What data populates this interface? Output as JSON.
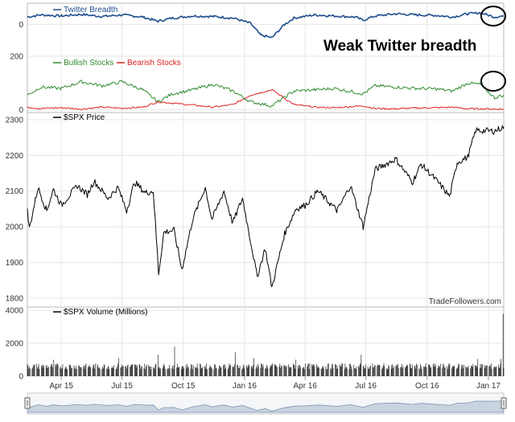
{
  "chart_data": {
    "type": "line",
    "source": "TradeFollowers.com",
    "annotation": "Weak Twitter breadth",
    "x_ticks": [
      "Apr 15",
      "Jul 15",
      "Oct 15",
      "Jan 16",
      "Apr 16",
      "Jul 16",
      "Oct 16",
      "Jan 17"
    ],
    "x_tick_dates": [
      "2015-04-01",
      "2015-07-01",
      "2015-10-01",
      "2016-01-01",
      "2016-04-01",
      "2016-07-01",
      "2016-10-01",
      "2017-01-01"
    ],
    "date_range": [
      "2015-02-09",
      "2017-01-24"
    ],
    "panels": [
      {
        "id": "breadth",
        "yticks": [
          0
        ],
        "ylim": [
          -60,
          40
        ],
        "series": [
          {
            "name": "Twitter Breadth",
            "color": "#1f4e8c",
            "points": [
              [
                "2015-02-09",
                14
              ],
              [
                "2015-03-01",
                18
              ],
              [
                "2015-04-01",
                16
              ],
              [
                "2015-05-01",
                19
              ],
              [
                "2015-06-01",
                15
              ],
              [
                "2015-07-01",
                18
              ],
              [
                "2015-08-01",
                14
              ],
              [
                "2015-08-24",
                6
              ],
              [
                "2015-09-15",
                12
              ],
              [
                "2015-10-15",
                16
              ],
              [
                "2015-11-15",
                15
              ],
              [
                "2015-12-15",
                12
              ],
              [
                "2016-01-10",
                2
              ],
              [
                "2016-01-25",
                -20
              ],
              [
                "2016-02-11",
                -25
              ],
              [
                "2016-03-01",
                0
              ],
              [
                "2016-03-15",
                12
              ],
              [
                "2016-04-15",
                18
              ],
              [
                "2016-05-15",
                16
              ],
              [
                "2016-06-15",
                14
              ],
              [
                "2016-06-27",
                8
              ],
              [
                "2016-07-15",
                16
              ],
              [
                "2016-08-15",
                20
              ],
              [
                "2016-09-15",
                18
              ],
              [
                "2016-10-15",
                17
              ],
              [
                "2016-11-08",
                14
              ],
              [
                "2016-12-01",
                20
              ],
              [
                "2016-12-20",
                22
              ],
              [
                "2017-01-10",
                14
              ],
              [
                "2017-01-24",
                16
              ]
            ]
          }
        ]
      },
      {
        "id": "bull-bear",
        "yticks": [
          0,
          200
        ],
        "ylim": [
          -10,
          200
        ],
        "series": [
          {
            "name": "Bullish Stocks",
            "color": "#2e8b2e",
            "points": [
              [
                "2015-02-09",
                55
              ],
              [
                "2015-03-01",
                85
              ],
              [
                "2015-04-01",
                80
              ],
              [
                "2015-05-01",
                105
              ],
              [
                "2015-06-01",
                90
              ],
              [
                "2015-07-01",
                105
              ],
              [
                "2015-08-01",
                75
              ],
              [
                "2015-08-24",
                30
              ],
              [
                "2015-09-15",
                60
              ],
              [
                "2015-10-15",
                75
              ],
              [
                "2015-11-15",
                95
              ],
              [
                "2015-12-15",
                70
              ],
              [
                "2016-01-10",
                30
              ],
              [
                "2016-02-11",
                15
              ],
              [
                "2016-03-15",
                70
              ],
              [
                "2016-04-15",
                75
              ],
              [
                "2016-05-15",
                80
              ],
              [
                "2016-06-27",
                60
              ],
              [
                "2016-07-15",
                90
              ],
              [
                "2016-08-15",
                85
              ],
              [
                "2016-09-15",
                80
              ],
              [
                "2016-10-15",
                78
              ],
              [
                "2016-11-08",
                70
              ],
              [
                "2016-12-01",
                100
              ],
              [
                "2016-12-20",
                95
              ],
              [
                "2017-01-10",
                45
              ],
              [
                "2017-01-24",
                55
              ]
            ]
          },
          {
            "name": "Bearish Stocks",
            "color": "#e02020",
            "points": [
              [
                "2015-02-09",
                10
              ],
              [
                "2015-03-01",
                5
              ],
              [
                "2015-04-01",
                8
              ],
              [
                "2015-05-01",
                3
              ],
              [
                "2015-06-01",
                10
              ],
              [
                "2015-07-01",
                6
              ],
              [
                "2015-08-01",
                10
              ],
              [
                "2015-08-24",
                30
              ],
              [
                "2015-09-15",
                25
              ],
              [
                "2015-10-15",
                18
              ],
              [
                "2015-11-15",
                10
              ],
              [
                "2015-12-15",
                20
              ],
              [
                "2016-01-10",
                55
              ],
              [
                "2016-02-11",
                75
              ],
              [
                "2016-03-15",
                20
              ],
              [
                "2016-04-15",
                10
              ],
              [
                "2016-05-15",
                8
              ],
              [
                "2016-06-27",
                15
              ],
              [
                "2016-07-15",
                5
              ],
              [
                "2016-08-15",
                4
              ],
              [
                "2016-09-15",
                7
              ],
              [
                "2016-10-15",
                8
              ],
              [
                "2016-11-08",
                10
              ],
              [
                "2016-12-01",
                4
              ],
              [
                "2016-12-20",
                4
              ],
              [
                "2017-01-10",
                3
              ],
              [
                "2017-01-24",
                3
              ]
            ]
          }
        ]
      },
      {
        "id": "price",
        "yticks": [
          1800,
          1900,
          2000,
          2100,
          2200,
          2300
        ],
        "ylim": [
          1775,
          2320
        ],
        "series": [
          {
            "name": "$SPX Price",
            "color": "#000000",
            "points": [
              [
                "2015-02-09",
                2045
              ],
              [
                "2015-02-12",
                1995
              ],
              [
                "2015-02-25",
                2110
              ],
              [
                "2015-03-10",
                2045
              ],
              [
                "2015-03-20",
                2105
              ],
              [
                "2015-04-01",
                2060
              ],
              [
                "2015-04-25",
                2115
              ],
              [
                "2015-05-10",
                2090
              ],
              [
                "2015-05-20",
                2128
              ],
              [
                "2015-06-10",
                2080
              ],
              [
                "2015-06-25",
                2110
              ],
              [
                "2015-07-08",
                2045
              ],
              [
                "2015-07-20",
                2125
              ],
              [
                "2015-08-05",
                2095
              ],
              [
                "2015-08-17",
                2100
              ],
              [
                "2015-08-25",
                1870
              ],
              [
                "2015-09-02",
                1985
              ],
              [
                "2015-09-17",
                1990
              ],
              [
                "2015-09-29",
                1880
              ],
              [
                "2015-10-15",
                2020
              ],
              [
                "2015-11-03",
                2110
              ],
              [
                "2015-11-13",
                2020
              ],
              [
                "2015-12-01",
                2100
              ],
              [
                "2015-12-14",
                2010
              ],
              [
                "2015-12-29",
                2080
              ],
              [
                "2016-01-20",
                1860
              ],
              [
                "2016-02-01",
                1940
              ],
              [
                "2016-02-11",
                1830
              ],
              [
                "2016-03-01",
                1980
              ],
              [
                "2016-03-18",
                2050
              ],
              [
                "2016-04-01",
                2060
              ],
              [
                "2016-04-20",
                2100
              ],
              [
                "2016-05-19",
                2045
              ],
              [
                "2016-06-08",
                2115
              ],
              [
                "2016-06-27",
                2000
              ],
              [
                "2016-07-15",
                2160
              ],
              [
                "2016-08-15",
                2190
              ],
              [
                "2016-09-09",
                2125
              ],
              [
                "2016-09-22",
                2175
              ],
              [
                "2016-10-15",
                2130
              ],
              [
                "2016-11-04",
                2085
              ],
              [
                "2016-11-15",
                2180
              ],
              [
                "2016-12-01",
                2195
              ],
              [
                "2016-12-13",
                2270
              ],
              [
                "2017-01-10",
                2268
              ],
              [
                "2017-01-24",
                2280
              ]
            ]
          }
        ]
      },
      {
        "id": "volume",
        "yticks": [
          0,
          2000,
          4000
        ],
        "ylim": [
          0,
          4200
        ],
        "series": [
          {
            "name": "$SPX Volume (Millions)",
            "color": "#000000",
            "base_volume": 600,
            "spikes": [
              [
                "2015-03-20",
                1000
              ],
              [
                "2015-06-26",
                1100
              ],
              [
                "2015-08-24",
                1300
              ],
              [
                "2015-09-18",
                1800
              ],
              [
                "2015-12-18",
                1450
              ],
              [
                "2016-01-15",
                1100
              ],
              [
                "2016-03-18",
                1000
              ],
              [
                "2016-06-24",
                1300
              ],
              [
                "2016-12-16",
                1050
              ],
              [
                "2017-01-20",
                1050
              ],
              [
                "2017-01-23",
                3800
              ]
            ]
          }
        ]
      }
    ]
  }
}
